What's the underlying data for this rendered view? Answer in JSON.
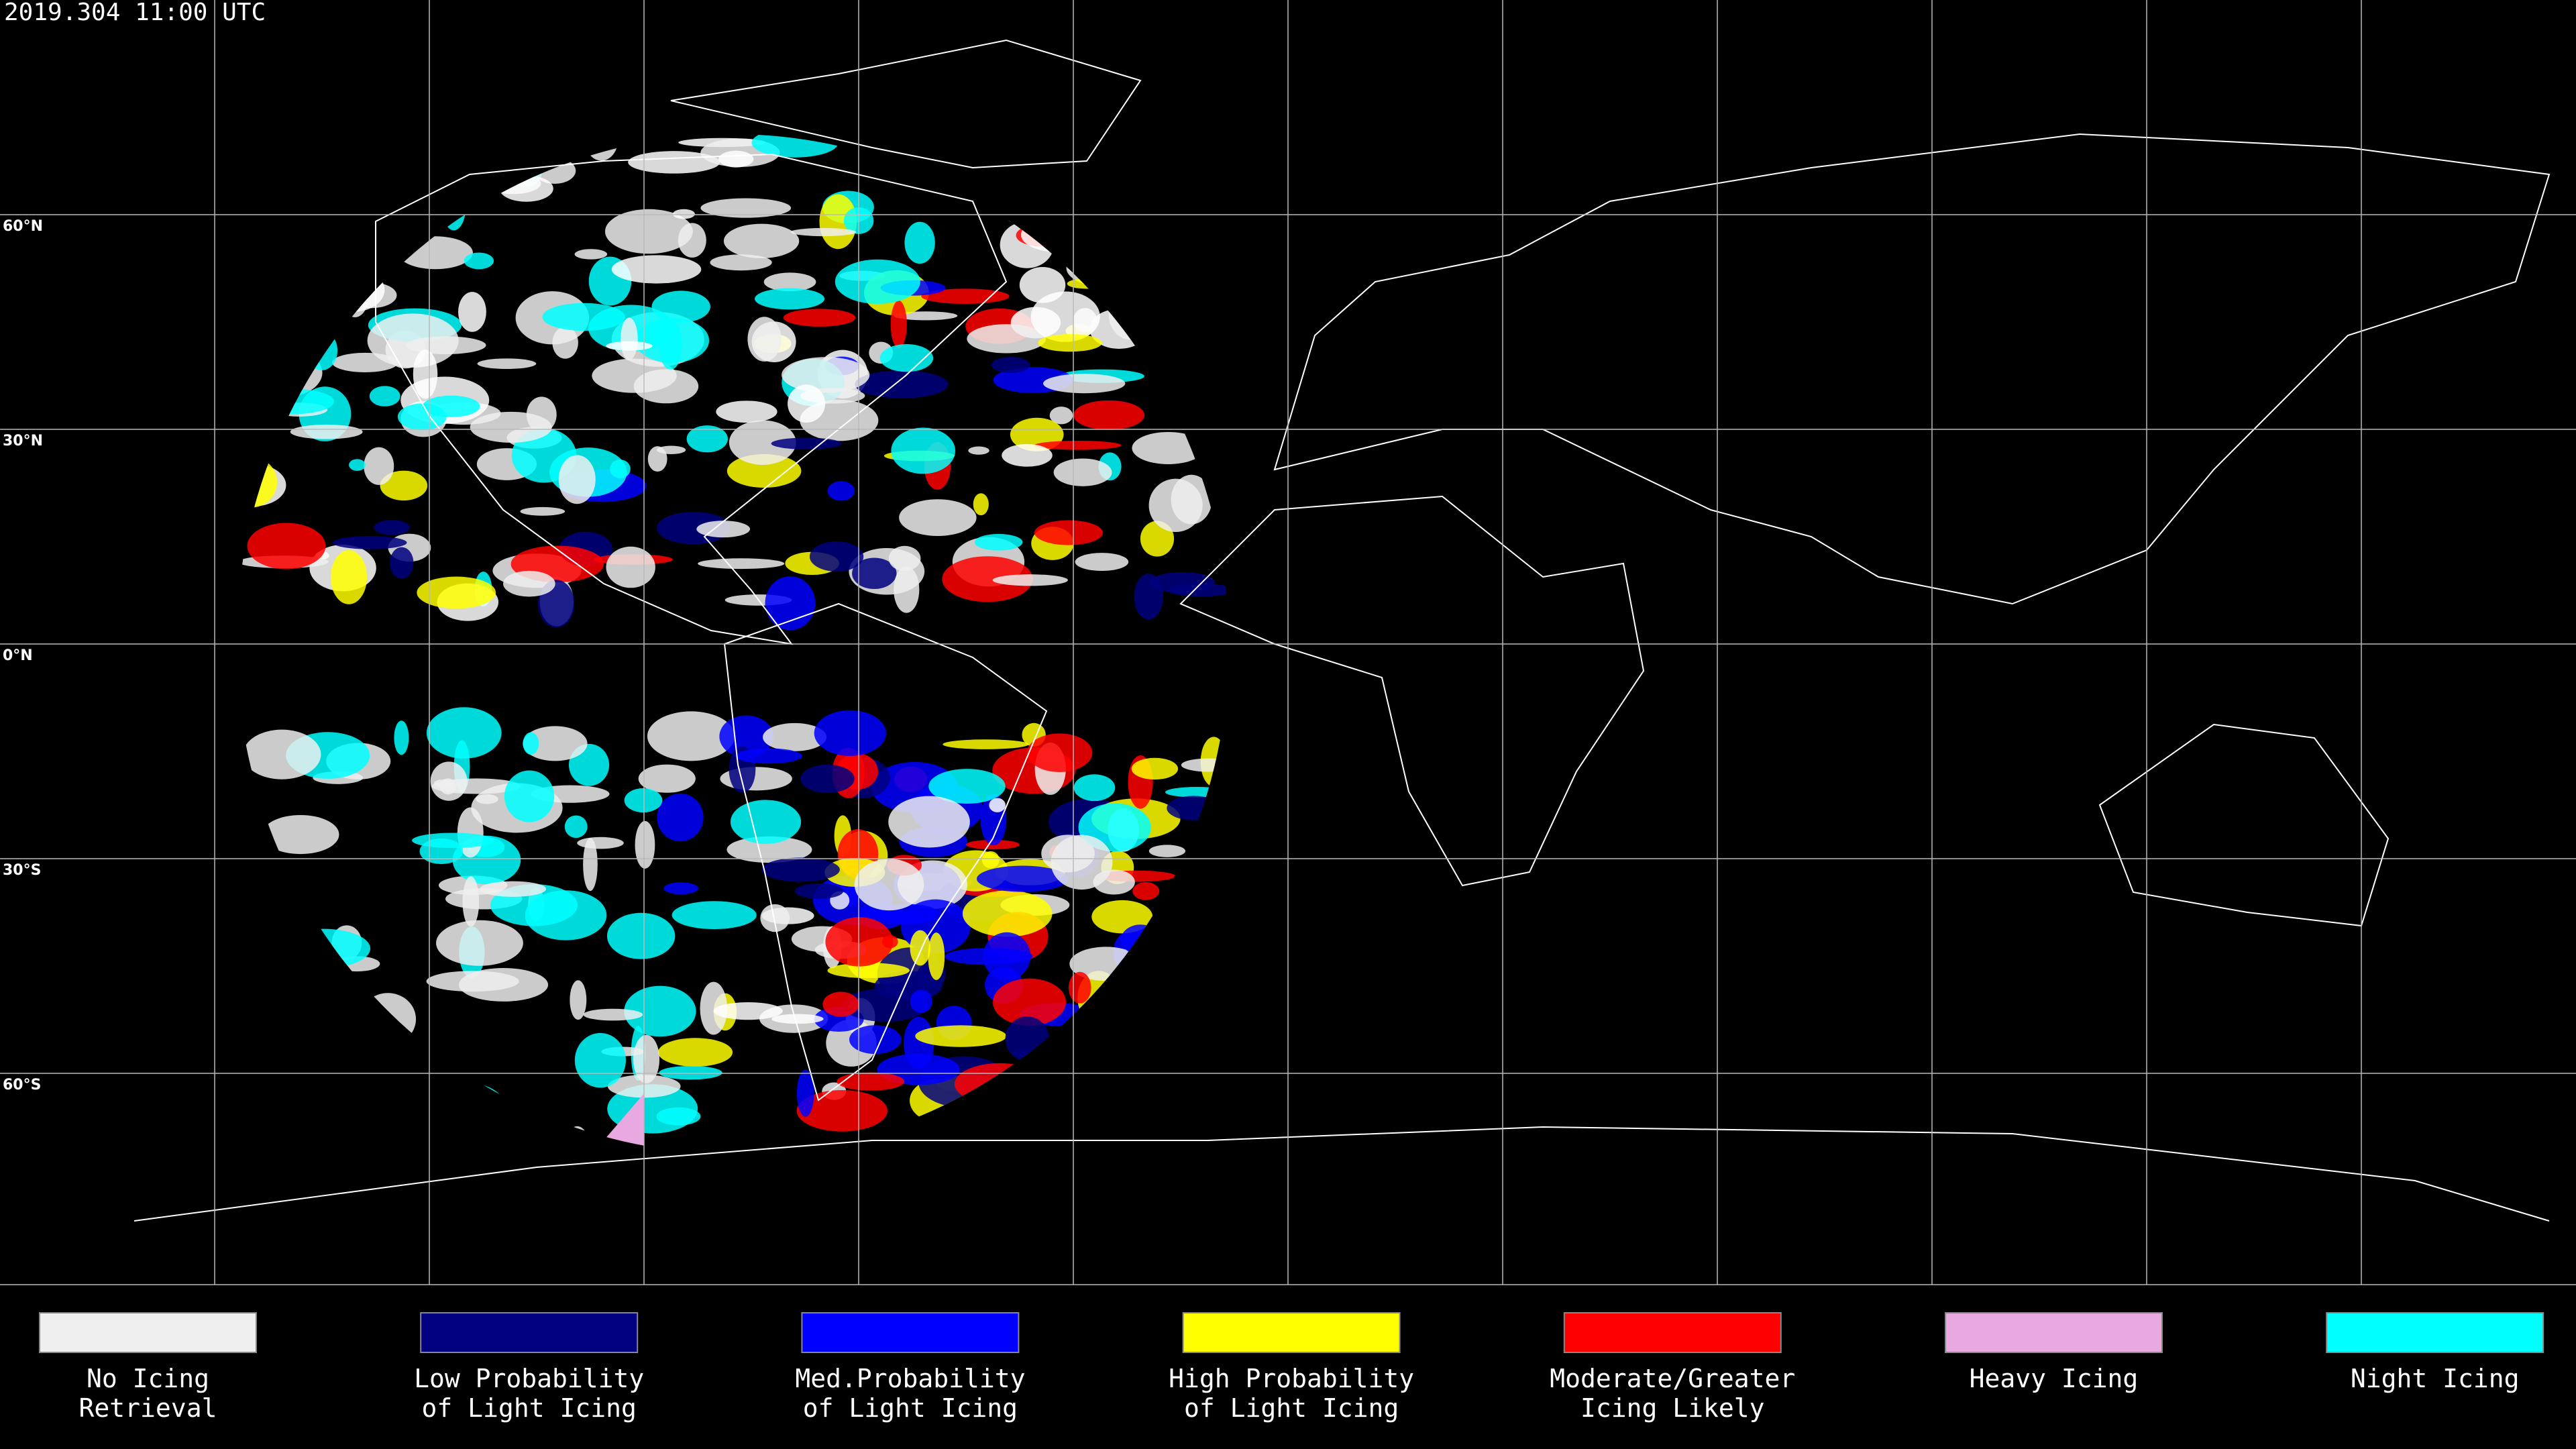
{
  "title": "2019.304 11:00 UTC",
  "latitude_labels": [
    "60°N",
    "30°N",
    "0°N",
    "30°S",
    "60°S"
  ],
  "legend": [
    {
      "label": [
        "No Icing",
        "Retrieval"
      ],
      "color": "#efefef"
    },
    {
      "label": [
        "Low Probability",
        "of Light Icing"
      ],
      "color": "#000080"
    },
    {
      "label": [
        "Med.Probability",
        "of Light Icing"
      ],
      "color": "#0000ff"
    },
    {
      "label": [
        "High Probability",
        "of Light Icing"
      ],
      "color": "#ffff00"
    },
    {
      "label": [
        "Moderate/Greater",
        "Icing Likely"
      ],
      "color": "#ff0000"
    },
    {
      "label": [
        "Heavy Icing"
      ],
      "color": "#e8a8e0"
    },
    {
      "label": [
        "Night Icing"
      ],
      "color": "#00ffff"
    }
  ]
}
